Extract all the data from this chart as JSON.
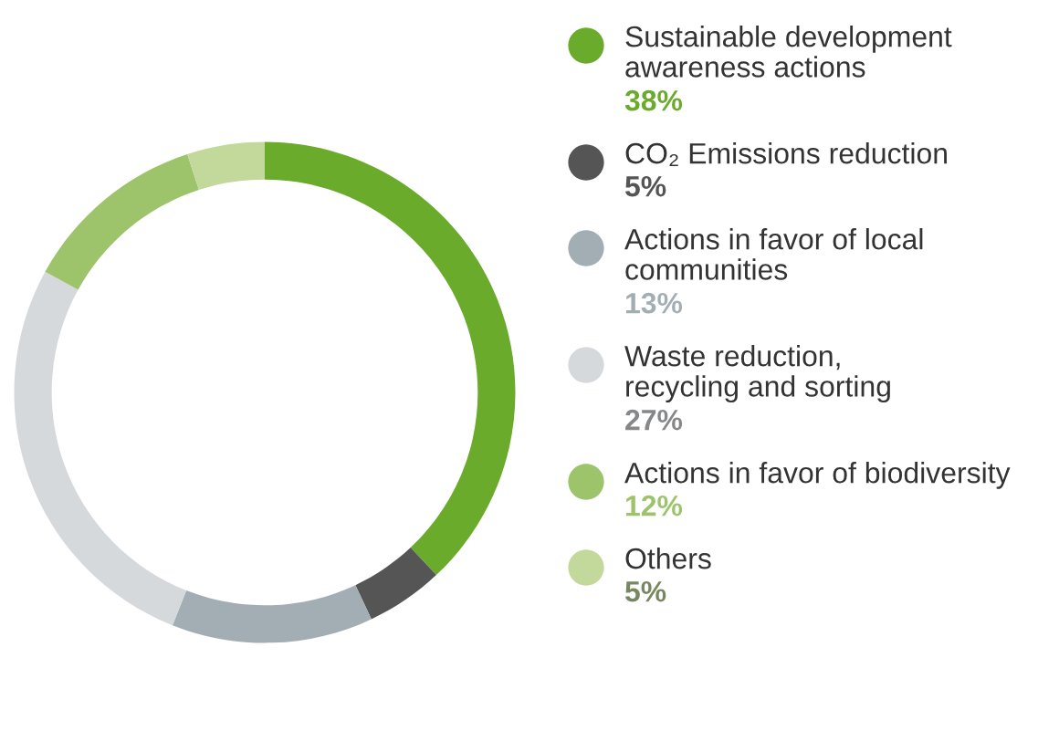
{
  "chart_data": {
    "type": "donut",
    "categories": [
      "Sustainable development\nawareness actions",
      "CO₂ Emissions reduction",
      "Actions in favor of local\ncommunities",
      "Waste reduction,\nrecycling and sorting",
      "Actions in favor of biodiversity",
      "Others"
    ],
    "values": [
      38,
      5,
      13,
      27,
      12,
      5
    ],
    "value_labels": [
      "38%",
      "5%",
      "13%",
      "27%",
      "12%",
      "5%"
    ],
    "colors": [
      "#6aab2c",
      "#555555",
      "#a3aeb4",
      "#d6d9dc",
      "#9dc46a",
      "#c3d99c"
    ],
    "legend": "right"
  }
}
